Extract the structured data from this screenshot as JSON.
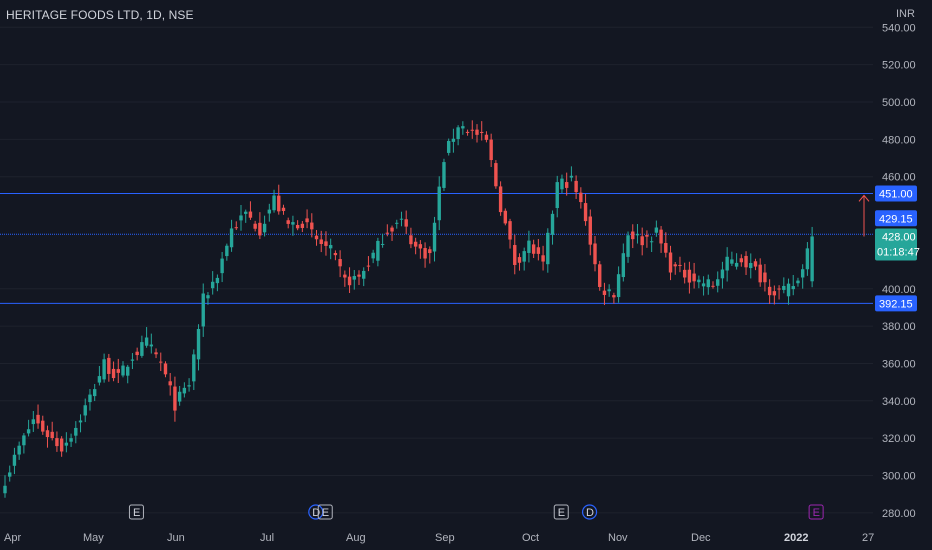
{
  "header": {
    "title": "HERITAGE FOODS LTD, 1D, NSE"
  },
  "currency": "INR",
  "colors": {
    "background": "#131722",
    "up": "#26a69a",
    "down": "#ef5350",
    "level_line": "#2962ff",
    "level_tag": "#2962ff",
    "current_tag": "#26a69a",
    "grid": "#1e222d"
  },
  "chart_data": {
    "type": "candlestick",
    "y_axis": {
      "ticks": [
        "540.00",
        "520.00",
        "500.00",
        "480.00",
        "460.00",
        "400.00",
        "380.00",
        "360.00",
        "340.00",
        "320.00",
        "300.00",
        "280.00"
      ],
      "range": [
        276,
        550
      ]
    },
    "x_axis": {
      "labels": [
        "Apr",
        "May",
        "Jun",
        "Jul",
        "Aug",
        "Sep",
        "Oct",
        "Nov",
        "Dec",
        "2022",
        "27"
      ],
      "bold_label": "2022"
    },
    "levels": [
      {
        "value": 451.0,
        "label": "451.00"
      },
      {
        "value": 429.15,
        "label": "429.15"
      },
      {
        "value": 392.15,
        "label": "392.15"
      }
    ],
    "current_price": {
      "value": 428.0,
      "label": "428.00",
      "countdown": "01:18:47"
    },
    "events": [
      {
        "label": "E",
        "date_index": 27
      },
      {
        "label": "D",
        "date_index": 65
      },
      {
        "label": "E",
        "date_index": 67
      },
      {
        "label": "E",
        "date_index": 117
      },
      {
        "label": "D",
        "date_index": 123
      },
      {
        "label": "E",
        "date_index": 171
      }
    ],
    "close_path": [
      [
        0,
        298
      ],
      [
        3,
        315
      ],
      [
        6,
        330
      ],
      [
        9,
        322
      ],
      [
        12,
        315
      ],
      [
        15,
        326
      ],
      [
        18,
        342
      ],
      [
        21,
        360
      ],
      [
        24,
        352
      ],
      [
        27,
        364
      ],
      [
        30,
        371
      ],
      [
        33,
        360
      ],
      [
        36,
        338
      ],
      [
        39,
        349
      ],
      [
        42,
        394
      ],
      [
        45,
        408
      ],
      [
        48,
        432
      ],
      [
        51,
        440
      ],
      [
        54,
        432
      ],
      [
        57,
        448
      ],
      [
        60,
        434
      ],
      [
        63,
        436
      ],
      [
        66,
        426
      ],
      [
        69,
        420
      ],
      [
        72,
        404
      ],
      [
        75,
        406
      ],
      [
        78,
        418
      ],
      [
        81,
        432
      ],
      [
        84,
        436
      ],
      [
        87,
        422
      ],
      [
        90,
        418
      ],
      [
        93,
        470
      ],
      [
        96,
        488
      ],
      [
        99,
        484
      ],
      [
        102,
        479
      ],
      [
        105,
        444
      ],
      [
        108,
        414
      ],
      [
        111,
        424
      ],
      [
        114,
        412
      ],
      [
        117,
        456
      ],
      [
        120,
        458
      ],
      [
        123,
        438
      ],
      [
        126,
        400
      ],
      [
        129,
        398
      ],
      [
        132,
        430
      ],
      [
        135,
        426
      ],
      [
        138,
        430
      ],
      [
        141,
        412
      ],
      [
        144,
        408
      ],
      [
        147,
        404
      ],
      [
        150,
        402
      ],
      [
        153,
        414
      ],
      [
        156,
        416
      ],
      [
        159,
        410
      ],
      [
        162,
        400
      ],
      [
        165,
        398
      ],
      [
        168,
        404
      ],
      [
        171,
        430
      ]
    ]
  }
}
